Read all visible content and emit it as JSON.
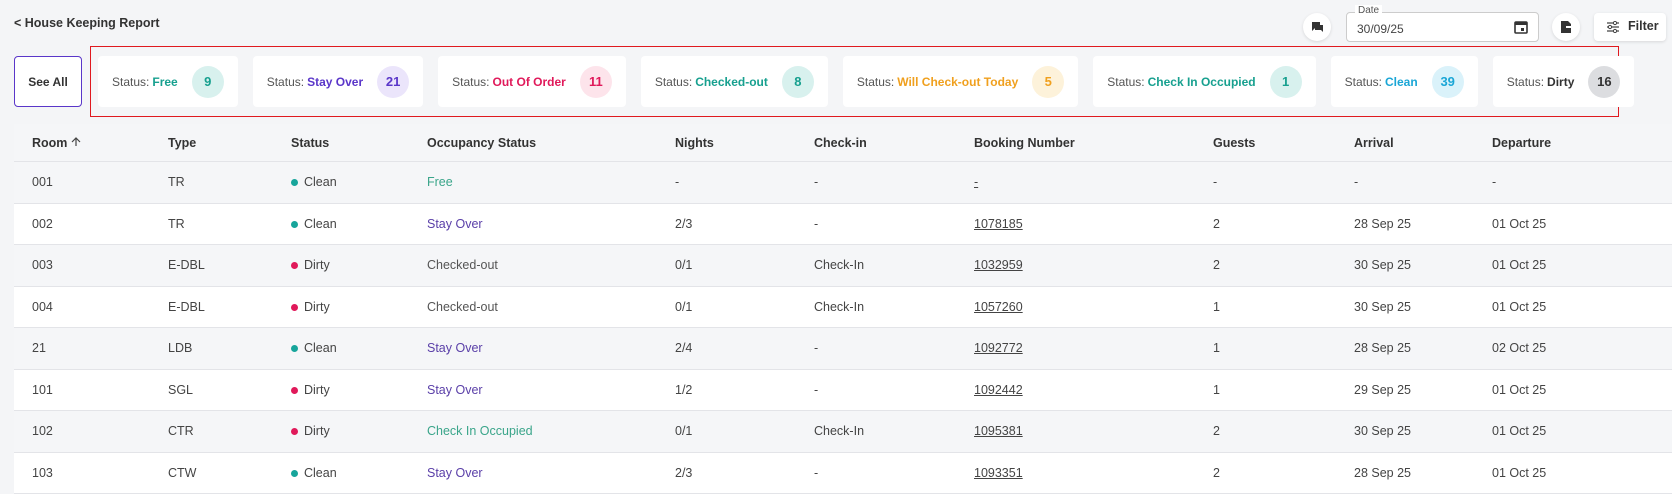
{
  "header": {
    "back": "< House Keeping Report",
    "date_label": "Date",
    "date_value": "30/09/25",
    "filter": "Filter"
  },
  "status_bar": {
    "see_all": "See All",
    "prefix": "Status:",
    "cards": [
      {
        "label": "Free",
        "count": 9,
        "color": "#17a08f",
        "badge": "#d8f1ee"
      },
      {
        "label": "Stay Over",
        "count": 21,
        "color": "#5a36c9",
        "badge": "#ebe5fb"
      },
      {
        "label": "Out Of Order",
        "count": 11,
        "color": "#e0195a",
        "badge": "#fde4eb"
      },
      {
        "label": "Checked-out",
        "count": 8,
        "color": "#17a08f",
        "badge": "#d8f1ee"
      },
      {
        "label": "Will Check-out Today",
        "count": 5,
        "color": "#f0a01e",
        "badge": "#fdf2da"
      },
      {
        "label": "Check In Occupied",
        "count": 1,
        "color": "#17a08f",
        "badge": "#d8f1ee"
      },
      {
        "label": "Clean",
        "count": 39,
        "color": "#1aa6d6",
        "badge": "#daf2fa"
      },
      {
        "label": "Dirty",
        "count": 16,
        "color": "#333333",
        "badge": "#dcdde0"
      }
    ]
  },
  "table": {
    "columns": [
      "Room",
      "Type",
      "Status",
      "Occupancy Status",
      "Nights",
      "Check-in",
      "Booking Number",
      "Guests",
      "Arrival",
      "Departure"
    ],
    "rows": [
      {
        "cells": [
          "001",
          "TR",
          "Clean",
          "Free",
          "-",
          "-",
          "-",
          "-",
          "-",
          "-"
        ],
        "dot_color": "#17a59b",
        "occupancy_color": "#3aa58a"
      },
      {
        "cells": [
          "002",
          "TR",
          "Clean",
          "Stay Over",
          "2/3",
          "-",
          "1078185",
          "2",
          "28 Sep 25",
          "01 Oct 25"
        ],
        "dot_color": "#17a59b",
        "occupancy_color": "#5a3fa8"
      },
      {
        "cells": [
          "003",
          "E-DBL",
          "Dirty",
          "Checked-out",
          "0/1",
          "Check-In",
          "1032959",
          "2",
          "30 Sep 25",
          "01 Oct 25"
        ],
        "dot_color": "#e0195a",
        "occupancy_color": "#555555"
      },
      {
        "cells": [
          "004",
          "E-DBL",
          "Dirty",
          "Checked-out",
          "0/1",
          "Check-In",
          "1057260",
          "1",
          "30 Sep 25",
          "01 Oct 25"
        ],
        "dot_color": "#e0195a",
        "occupancy_color": "#555555"
      },
      {
        "cells": [
          "21",
          "LDB",
          "Clean",
          "Stay Over",
          "2/4",
          "-",
          "1092772",
          "1",
          "28 Sep 25",
          "02 Oct 25"
        ],
        "dot_color": "#17a59b",
        "occupancy_color": "#5a3fa8"
      },
      {
        "cells": [
          "101",
          "SGL",
          "Dirty",
          "Stay Over",
          "1/2",
          "-",
          "1092442",
          "1",
          "29 Sep 25",
          "01 Oct 25"
        ],
        "dot_color": "#e0195a",
        "occupancy_color": "#5a3fa8"
      },
      {
        "cells": [
          "102",
          "CTR",
          "Dirty",
          "Check In Occupied",
          "0/1",
          "Check-In",
          "1095381",
          "2",
          "30 Sep 25",
          "01 Oct 25"
        ],
        "dot_color": "#e0195a",
        "occupancy_color": "#3aa58a"
      },
      {
        "cells": [
          "103",
          "CTW",
          "Clean",
          "Stay Over",
          "2/3",
          "-",
          "1093351",
          "2",
          "28 Sep 25",
          "01 Oct 25"
        ],
        "dot_color": "#17a59b",
        "occupancy_color": "#5a3fa8"
      }
    ]
  }
}
